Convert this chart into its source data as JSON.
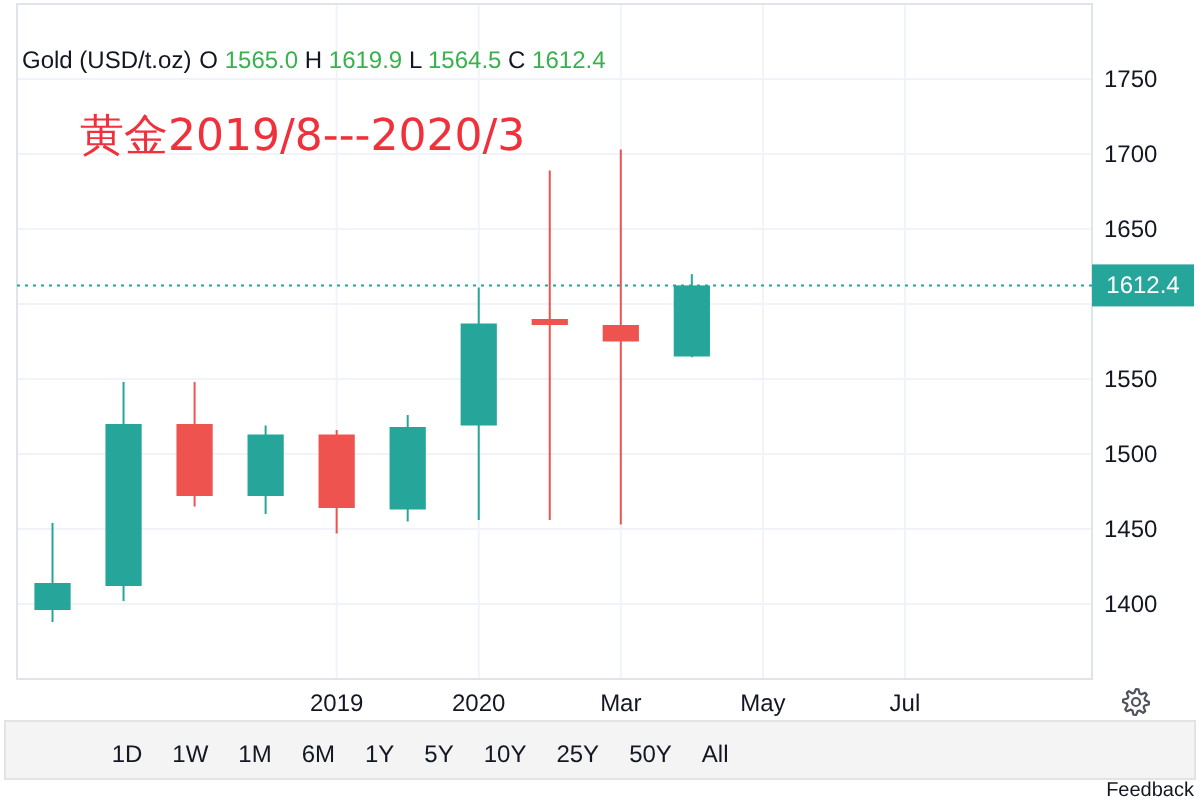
{
  "chart_data": {
    "type": "candlestick",
    "title": "Gold (USD/t.oz)",
    "subtitle": "黄金2019/8---2020/3",
    "x": [
      "2019-07",
      "2019-08",
      "2019-09",
      "2019-10",
      "2019-11",
      "2019-12",
      "2020-01",
      "2020-02",
      "2020-03",
      "2020-04"
    ],
    "ohlc": [
      [
        1396,
        1454,
        1388,
        1414
      ],
      [
        1412,
        1548,
        1402,
        1520
      ],
      [
        1520,
        1548,
        1465,
        1472
      ],
      [
        1472,
        1519,
        1460,
        1513
      ],
      [
        1513,
        1516,
        1447,
        1464
      ],
      [
        1463,
        1526,
        1455,
        1518
      ],
      [
        1519,
        1611,
        1456,
        1587
      ],
      [
        1590,
        1689,
        1456,
        1586
      ],
      [
        1586,
        1703,
        1453,
        1575
      ],
      [
        1565.0,
        1619.9,
        1564.5,
        1612.4
      ]
    ],
    "colors": [
      "#26a69a",
      "#26a69a",
      "#ef5350",
      "#26a69a",
      "#ef5350",
      "#26a69a",
      "#26a69a",
      "#ef5350",
      "#ef5350",
      "#26a69a"
    ],
    "xlim": [
      "2019-06-16",
      "2020-09-20"
    ],
    "xticks": [
      {
        "value": "2019-11",
        "label": "2019"
      },
      {
        "value": "2020-01",
        "label": "2020"
      },
      {
        "value": "2020-03",
        "label": "Mar"
      },
      {
        "value": "2020-05",
        "label": "May"
      },
      {
        "value": "2020-07",
        "label": "Jul"
      }
    ],
    "ylim": [
      1350,
      1800
    ],
    "yticks": [
      1400,
      1450,
      1500,
      1550,
      {
        "value": 1600,
        "label": null
      },
      1650,
      1700,
      1750
    ],
    "grid": true,
    "ref_lines": [
      {
        "axis": "y",
        "value": 1612.4,
        "label": "1612.4",
        "color": "#26a69a",
        "line_style": "dotted"
      }
    ],
    "annotations": [
      "O 1565.0 H 1619.9 L 1564.5 C 1612.4",
      "1D",
      "1W",
      "1M",
      "6M",
      "1Y",
      "5Y",
      "10Y",
      "25Y",
      "50Y",
      "All",
      "Feedback"
    ]
  }
}
